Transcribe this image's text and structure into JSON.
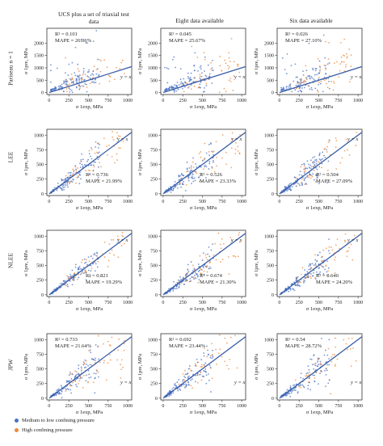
{
  "column_titles": [
    "UCS plus a set of triaxial test data",
    "Eight data available",
    "Six data available"
  ],
  "row_titles": [
    "Pariseau n = 1",
    "LEE",
    "NLEE",
    "JPW"
  ],
  "legend": {
    "items": [
      {
        "label": "Medium to low confining pressure",
        "color": "#4a72c4"
      },
      {
        "label": "High confining pressure",
        "color": "#ef8a3a"
      }
    ]
  },
  "colors": {
    "medium_low": "#4a72c4",
    "high": "#ef8a3a",
    "fit_line": "#3b5fa8",
    "axis": "#333333"
  },
  "chart_data": [
    {
      "type": "scatter",
      "model": "Pariseau n = 1",
      "dataset": "UCS plus a set of triaxial test data",
      "r2_label": "R² = 0.101",
      "mape_label": "MAPE = 26.06%",
      "line_label": "y = x",
      "xlabel": "σ 1exp, MPa",
      "ylabel": "σ 1pre, MPa",
      "xticks": [
        0,
        250,
        500,
        750,
        1000
      ],
      "yticks": [
        0,
        500,
        1000,
        1500,
        2000
      ],
      "xlim": [
        -30,
        1050
      ],
      "ylim": [
        -80,
        2600
      ]
    },
    {
      "type": "scatter",
      "model": "Pariseau n = 1",
      "dataset": "Eight data available",
      "r2_label": "R² = 0.045",
      "mape_label": "MAPE = 25.67%",
      "line_label": "y = x",
      "xlabel": "σ 1exp, MPa",
      "ylabel": "σ 1pre, MPa",
      "xticks": [
        0,
        250,
        500,
        750,
        1000
      ],
      "yticks": [
        0,
        500,
        1000,
        1500,
        2000
      ],
      "xlim": [
        -30,
        1050
      ],
      "ylim": [
        -80,
        2600
      ]
    },
    {
      "type": "scatter",
      "model": "Pariseau n = 1",
      "dataset": "Six data available",
      "r2_label": "R² = 0.026",
      "mape_label": "MAPE = 27.10%",
      "line_label": "y = x",
      "xlabel": "σ 1exp, MPa",
      "ylabel": "σ 1pre, MPa",
      "xticks": [
        0,
        250,
        500,
        750,
        1000
      ],
      "yticks": [
        0,
        500,
        1000,
        1500,
        2000
      ],
      "xlim": [
        -30,
        1050
      ],
      "ylim": [
        -80,
        2600
      ]
    },
    {
      "type": "scatter",
      "model": "LEE",
      "dataset": "UCS plus a set of triaxial test data",
      "r2_label": "R² = 0.736",
      "mape_label": "MAPE = 21.99%",
      "line_label": "y = x",
      "xlabel": "σ 1exp, MPa",
      "ylabel": "σ 1pre, MPa",
      "xticks": [
        0,
        250,
        500,
        750,
        1000
      ],
      "yticks": [
        0,
        250,
        500,
        750,
        1000
      ],
      "xlim": [
        -30,
        1050
      ],
      "ylim": [
        -30,
        1100
      ]
    },
    {
      "type": "scatter",
      "model": "LEE",
      "dataset": "Eight data available",
      "r2_label": "R² = 0.526",
      "mape_label": "MAPE = 23.33%",
      "line_label": "y = x",
      "xlabel": "σ 1exp, MPa",
      "ylabel": "σ 1pre, MPa",
      "xticks": [
        0,
        250,
        500,
        750,
        1000
      ],
      "yticks": [
        0,
        250,
        500,
        750,
        1000
      ],
      "xlim": [
        -30,
        1050
      ],
      "ylim": [
        -30,
        1100
      ]
    },
    {
      "type": "scatter",
      "model": "LEE",
      "dataset": "Six data available",
      "r2_label": "R² = 0.504",
      "mape_label": "MAPE = 27.09%",
      "line_label": "y = x",
      "xlabel": "σ 1exp, MPa",
      "ylabel": "σ 1pre, MPa",
      "xticks": [
        0,
        250,
        500,
        750,
        1000
      ],
      "yticks": [
        0,
        250,
        500,
        750,
        1000
      ],
      "xlim": [
        -30,
        1050
      ],
      "ylim": [
        -30,
        1100
      ]
    },
    {
      "type": "scatter",
      "model": "NLEE",
      "dataset": "UCS plus a set of triaxial test data",
      "r2_label": "R² = 0.821",
      "mape_label": "MAPE = 19.29%",
      "line_label": "y = x",
      "xlabel": "σ 1exp, MPa",
      "ylabel": "σ 1pre, MPa",
      "xticks": [
        0,
        250,
        500,
        750,
        1000
      ],
      "yticks": [
        0,
        250,
        500,
        750,
        1000
      ],
      "xlim": [
        -30,
        1050
      ],
      "ylim": [
        -30,
        1100
      ]
    },
    {
      "type": "scatter",
      "model": "NLEE",
      "dataset": "Eight data available",
      "r2_label": "R² = 0.674",
      "mape_label": "MAPE = 21.30%",
      "line_label": "y = x",
      "xlabel": "σ 1exp, MPa",
      "ylabel": "σ 1pre, MPa",
      "xticks": [
        0,
        250,
        500,
        750,
        1000
      ],
      "yticks": [
        0,
        250,
        500,
        750,
        1000
      ],
      "xlim": [
        -30,
        1050
      ],
      "ylim": [
        -30,
        1100
      ]
    },
    {
      "type": "scatter",
      "model": "NLEE",
      "dataset": "Six data available",
      "r2_label": "R² = 0.640",
      "mape_label": "MAPE = 24.20%",
      "line_label": "y = x",
      "xlabel": "σ 1exp, MPa",
      "ylabel": "σ 1pre, MPa",
      "xticks": [
        0,
        250,
        500,
        750,
        1000
      ],
      "yticks": [
        0,
        250,
        500,
        750,
        1000
      ],
      "xlim": [
        -30,
        1050
      ],
      "ylim": [
        -30,
        1100
      ]
    },
    {
      "type": "scatter",
      "model": "JPW",
      "dataset": "UCS plus a set of triaxial test data",
      "r2_label": "R² = 0.733",
      "mape_label": "MAPE = 21.64%",
      "line_label": "y = x",
      "xlabel": "σ 1exp, MPa",
      "ylabel": "σ 1pre, MPa",
      "xticks": [
        0,
        250,
        500,
        750,
        1000
      ],
      "yticks": [
        0,
        250,
        500,
        750,
        1000
      ],
      "xlim": [
        -30,
        1050
      ],
      "ylim": [
        -30,
        1100
      ]
    },
    {
      "type": "scatter",
      "model": "JPW",
      "dataset": "Eight data available",
      "r2_label": "R² = 0.692",
      "mape_label": "MAPE = 23.44%",
      "line_label": "y = x",
      "xlabel": "σ 1exp, MPa",
      "ylabel": "σ 1pre, MPa",
      "xticks": [
        0,
        250,
        500,
        750,
        1000
      ],
      "yticks": [
        0,
        250,
        500,
        750,
        1000
      ],
      "xlim": [
        -30,
        1050
      ],
      "ylim": [
        -30,
        1100
      ]
    },
    {
      "type": "scatter",
      "model": "JPW",
      "dataset": "Six data available",
      "r2_label": "R² = 0.54",
      "mape_label": "MAPE = 28.72%",
      "line_label": "y = x",
      "xlabel": "σ 1exp, MPa",
      "ylabel": "σ 1pre, MPa",
      "xticks": [
        0,
        250,
        500,
        750,
        1000
      ],
      "yticks": [
        0,
        250,
        500,
        750,
        1000
      ],
      "xlim": [
        -30,
        1050
      ],
      "ylim": [
        -30,
        1100
      ]
    }
  ]
}
